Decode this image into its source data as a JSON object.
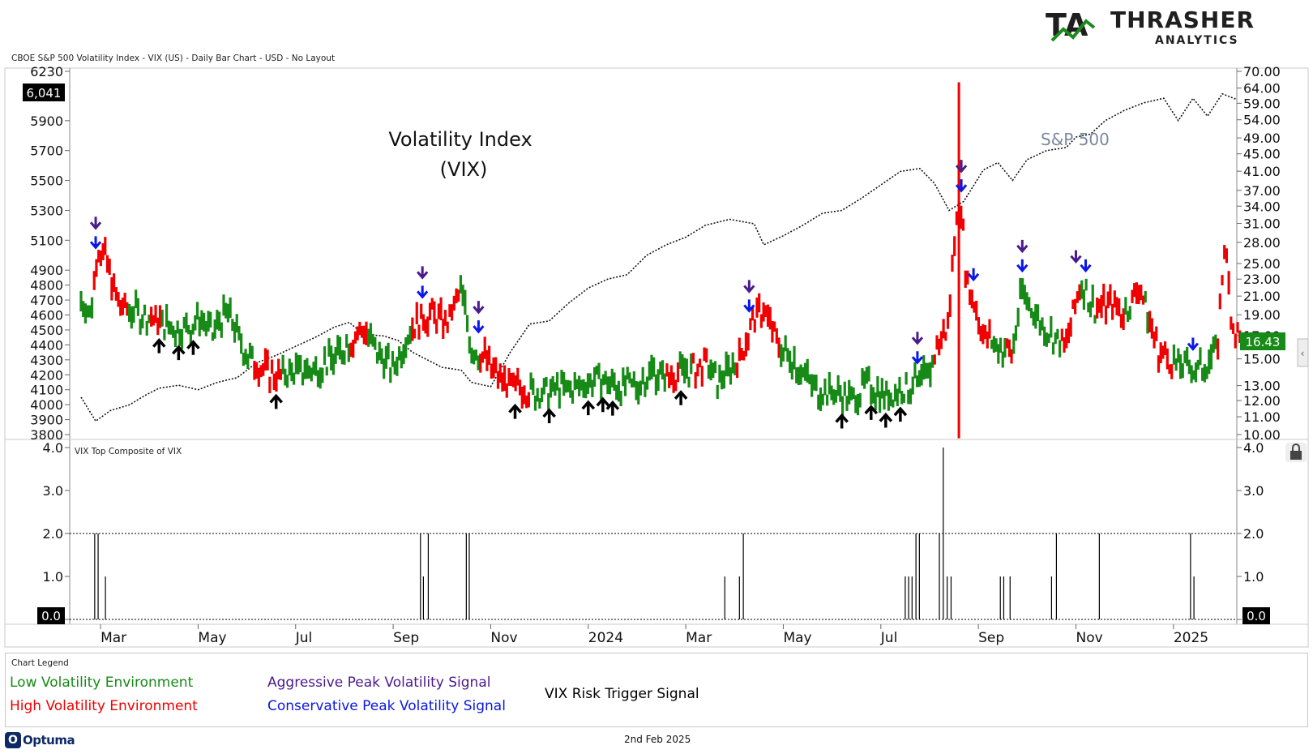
{
  "brand": {
    "logo_initials": "TA",
    "logo_name": "THRASHER",
    "logo_sub": "ANALYTICS",
    "colors": {
      "dark": "#1f1f1f",
      "green": "#1a8a1a"
    }
  },
  "caption": "CBOE S&P 500 Volatility Index - VIX (US) - Daily Bar Chart - USD - No Layout",
  "colors": {
    "low_vol": "#178a17",
    "high_vol": "#f00000",
    "aggressive": "#4b1a8c",
    "conservative": "#0a17e8",
    "trigger": "#000000",
    "spx": "#111111",
    "spx_label": "#7a8aa0"
  },
  "chart_data": [
    {
      "type": "line",
      "title": "Volatility Index",
      "subtitle": "(VIX)",
      "spx_label": "S&P 500",
      "left_axis_ticks": [
        "6230",
        "5900",
        "5700",
        "5500",
        "5300",
        "5100",
        "4900",
        "4800",
        "4700",
        "4600",
        "4500",
        "4400",
        "4300",
        "4200",
        "4100",
        "4000",
        "3900",
        "3800"
      ],
      "left_axis_values": [
        6230,
        5900,
        5700,
        5500,
        5300,
        5100,
        4900,
        4800,
        4700,
        4600,
        4500,
        4400,
        4300,
        4200,
        4100,
        4000,
        3900,
        3800
      ],
      "right_axis_ticks": [
        "70.00",
        "64.00",
        "59.00",
        "54.00",
        "49.00",
        "45.00",
        "41.00",
        "37.00",
        "34.00",
        "31.00",
        "28.00",
        "25.00",
        "23.00",
        "21.00",
        "19.00",
        "17.00",
        "15.00",
        "13.00",
        "12.00",
        "11.00",
        "10.00"
      ],
      "right_axis_values": [
        70,
        64,
        59,
        54,
        49,
        45,
        41,
        37,
        34,
        31,
        28,
        25,
        23,
        21,
        19,
        17,
        15,
        13,
        12,
        11,
        10
      ],
      "x_tick_labels": [
        "Mar",
        "May",
        "Jul",
        "Sep",
        "Nov",
        "2024",
        "Mar",
        "May",
        "Jul",
        "Sep",
        "Nov",
        "2025"
      ],
      "x_tick_positions": [
        0.4,
        2.4,
        4.4,
        6.4,
        8.4,
        10.4,
        12.4,
        14.4,
        16.4,
        18.4,
        20.4,
        22.4
      ],
      "month_range": [
        0.0,
        23.4
      ],
      "spx_current_label": "6,041",
      "vix_current_label": "16.43",
      "spx_series": [
        [
          0.0,
          4050
        ],
        [
          0.3,
          3890
        ],
        [
          0.6,
          3960
        ],
        [
          1.0,
          4000
        ],
        [
          1.3,
          4060
        ],
        [
          1.6,
          4110
        ],
        [
          2.0,
          4130
        ],
        [
          2.4,
          4100
        ],
        [
          2.8,
          4150
        ],
        [
          3.2,
          4180
        ],
        [
          3.6,
          4280
        ],
        [
          4.0,
          4330
        ],
        [
          4.4,
          4390
        ],
        [
          4.8,
          4450
        ],
        [
          5.2,
          4520
        ],
        [
          5.5,
          4550
        ],
        [
          5.8,
          4470
        ],
        [
          6.2,
          4460
        ],
        [
          6.5,
          4430
        ],
        [
          6.8,
          4350
        ],
        [
          7.1,
          4300
        ],
        [
          7.4,
          4250
        ],
        [
          7.8,
          4230
        ],
        [
          8.0,
          4150
        ],
        [
          8.4,
          4120
        ],
        [
          8.8,
          4350
        ],
        [
          9.2,
          4540
        ],
        [
          9.6,
          4560
        ],
        [
          10.0,
          4680
        ],
        [
          10.4,
          4780
        ],
        [
          10.8,
          4840
        ],
        [
          11.2,
          4870
        ],
        [
          11.6,
          5000
        ],
        [
          12.0,
          5070
        ],
        [
          12.4,
          5120
        ],
        [
          12.8,
          5200
        ],
        [
          13.3,
          5240
        ],
        [
          13.8,
          5210
        ],
        [
          14.0,
          5070
        ],
        [
          14.4,
          5130
        ],
        [
          14.8,
          5200
        ],
        [
          15.2,
          5280
        ],
        [
          15.6,
          5300
        ],
        [
          16.0,
          5380
        ],
        [
          16.4,
          5470
        ],
        [
          16.8,
          5560
        ],
        [
          17.2,
          5580
        ],
        [
          17.5,
          5480
        ],
        [
          17.8,
          5300
        ],
        [
          18.1,
          5360
        ],
        [
          18.5,
          5570
        ],
        [
          18.8,
          5620
        ],
        [
          19.1,
          5500
        ],
        [
          19.4,
          5640
        ],
        [
          19.8,
          5700
        ],
        [
          20.2,
          5720
        ],
        [
          20.4,
          5790
        ],
        [
          20.7,
          5810
        ],
        [
          21.0,
          5900
        ],
        [
          21.4,
          5970
        ],
        [
          21.8,
          6020
        ],
        [
          22.2,
          6050
        ],
        [
          22.5,
          5900
        ],
        [
          22.8,
          6050
        ],
        [
          23.1,
          5930
        ],
        [
          23.4,
          6080
        ],
        [
          23.7,
          6041
        ]
      ],
      "vix_series": [
        [
          0.0,
          20.5
        ],
        [
          0.2,
          19.0
        ],
        [
          0.35,
          27.0
        ],
        [
          0.5,
          26.0
        ],
        [
          0.7,
          21.0
        ],
        [
          0.9,
          19.5
        ],
        [
          1.2,
          19.0
        ],
        [
          1.5,
          18.5
        ],
        [
          1.8,
          18.0
        ],
        [
          2.1,
          17.5
        ],
        [
          2.4,
          18.5
        ],
        [
          2.7,
          17.0
        ],
        [
          3.0,
          19.5
        ],
        [
          3.3,
          16.0
        ],
        [
          3.6,
          14.5
        ],
        [
          4.0,
          13.6
        ],
        [
          4.4,
          14.0
        ],
        [
          4.8,
          14.2
        ],
        [
          5.2,
          15.0
        ],
        [
          5.5,
          16.5
        ],
        [
          5.8,
          17.5
        ],
        [
          6.1,
          15.5
        ],
        [
          6.4,
          14.0
        ],
        [
          6.7,
          17.0
        ],
        [
          6.9,
          18.5
        ],
        [
          7.2,
          19.0
        ],
        [
          7.5,
          18.0
        ],
        [
          7.8,
          21.5
        ],
        [
          8.0,
          16.0
        ],
        [
          8.3,
          15.0
        ],
        [
          8.6,
          13.2
        ],
        [
          9.0,
          12.8
        ],
        [
          9.4,
          12.5
        ],
        [
          9.8,
          12.7
        ],
        [
          10.2,
          12.8
        ],
        [
          10.6,
          13.5
        ],
        [
          11.0,
          13.0
        ],
        [
          11.4,
          12.9
        ],
        [
          11.7,
          14.0
        ],
        [
          12.0,
          13.5
        ],
        [
          12.4,
          14.0
        ],
        [
          12.8,
          14.5
        ],
        [
          13.1,
          13.2
        ],
        [
          13.5,
          15.0
        ],
        [
          13.8,
          18.5
        ],
        [
          14.0,
          19.5
        ],
        [
          14.3,
          16.0
        ],
        [
          14.6,
          15.0
        ],
        [
          15.0,
          12.8
        ],
        [
          15.4,
          12.5
        ],
        [
          15.8,
          12.0
        ],
        [
          16.1,
          13.0
        ],
        [
          16.5,
          12.3
        ],
        [
          16.8,
          12.7
        ],
        [
          17.2,
          13.2
        ],
        [
          17.4,
          14.0
        ],
        [
          17.6,
          16.5
        ],
        [
          17.8,
          18.0
        ],
        [
          18.0,
          38.0
        ],
        [
          18.15,
          23.0
        ],
        [
          18.3,
          20.5
        ],
        [
          18.5,
          17.0
        ],
        [
          18.8,
          16.0
        ],
        [
          19.1,
          15.5
        ],
        [
          19.3,
          21.5
        ],
        [
          19.6,
          18.5
        ],
        [
          19.9,
          17.0
        ],
        [
          20.2,
          16.0
        ],
        [
          20.5,
          22.5
        ],
        [
          20.8,
          19.5
        ],
        [
          21.1,
          20.0
        ],
        [
          21.4,
          19.0
        ],
        [
          21.7,
          22.0
        ],
        [
          21.9,
          18.5
        ],
        [
          22.1,
          15.5
        ],
        [
          22.5,
          14.5
        ],
        [
          22.9,
          14.0
        ],
        [
          23.3,
          15.5
        ],
        [
          23.45,
          27.5
        ],
        [
          23.6,
          18.0
        ],
        [
          23.8,
          16.43
        ]
      ],
      "high_vol_ranges": [
        [
          0.25,
          0.95
        ],
        [
          1.4,
          1.65
        ],
        [
          3.55,
          4.1
        ],
        [
          5.5,
          5.85
        ],
        [
          6.75,
          7.75
        ],
        [
          8.15,
          9.2
        ],
        [
          12.0,
          12.25
        ],
        [
          12.55,
          12.85
        ],
        [
          13.45,
          14.35
        ],
        [
          17.5,
          18.65
        ],
        [
          18.95,
          19.1
        ],
        [
          20.1,
          20.5
        ],
        [
          20.8,
          21.4
        ],
        [
          21.55,
          21.8
        ],
        [
          21.9,
          22.4
        ],
        [
          23.3,
          23.9
        ]
      ],
      "spike": {
        "x": 18.0,
        "high": 66.0,
        "low": 9.8
      },
      "aggressive_signals": [
        0.3,
        7.0,
        8.15,
        13.7,
        17.15,
        18.05,
        19.3,
        20.4
      ],
      "conservative_signals": [
        0.3,
        7.0,
        8.15,
        13.7,
        17.15,
        18.05,
        18.3,
        19.3,
        20.6,
        22.8
      ],
      "trigger_signals": [
        1.6,
        2.0,
        2.3,
        4.0,
        8.9,
        9.6,
        10.4,
        10.7,
        10.9,
        12.3,
        15.6,
        16.2,
        16.5,
        16.8
      ]
    },
    {
      "type": "bar",
      "title": "VIX Top Composite of VIX",
      "y_ticks": [
        "4.0",
        "3.0",
        "2.0",
        "1.0",
        "0.0"
      ],
      "y_values": [
        4.0,
        3.0,
        2.0,
        1.0,
        0.0
      ],
      "threshold": 2.0,
      "current_label": "0.0",
      "bars": [
        [
          0.28,
          2.0
        ],
        [
          0.35,
          2.0
        ],
        [
          0.5,
          1.0
        ],
        [
          6.96,
          2.0
        ],
        [
          7.02,
          1.0
        ],
        [
          7.12,
          2.0
        ],
        [
          7.9,
          2.0
        ],
        [
          7.96,
          2.0
        ],
        [
          13.2,
          1.0
        ],
        [
          13.5,
          1.0
        ],
        [
          13.58,
          2.0
        ],
        [
          16.9,
          1.0
        ],
        [
          16.97,
          1.0
        ],
        [
          17.04,
          1.0
        ],
        [
          17.12,
          2.0
        ],
        [
          17.19,
          2.0
        ],
        [
          17.6,
          2.0
        ],
        [
          17.68,
          4.0
        ],
        [
          17.76,
          1.0
        ],
        [
          17.84,
          1.0
        ],
        [
          18.85,
          1.0
        ],
        [
          18.92,
          1.0
        ],
        [
          19.05,
          1.0
        ],
        [
          19.9,
          1.0
        ],
        [
          20.0,
          2.0
        ],
        [
          20.88,
          2.0
        ],
        [
          22.75,
          2.0
        ],
        [
          22.82,
          1.0
        ]
      ]
    }
  ],
  "legend": {
    "title": "Chart Legend",
    "low_vol": "Low Volatility Environment",
    "high_vol": "High Volatility Environment",
    "aggressive": "Aggressive Peak Volatility Signal",
    "conservative": "Conservative Peak Volatility Signal",
    "trigger": "VIX Risk Trigger Signal"
  },
  "footer": {
    "date": "2nd Feb 2025",
    "optuma_mark": "O",
    "optuma_label": "Optuma"
  }
}
